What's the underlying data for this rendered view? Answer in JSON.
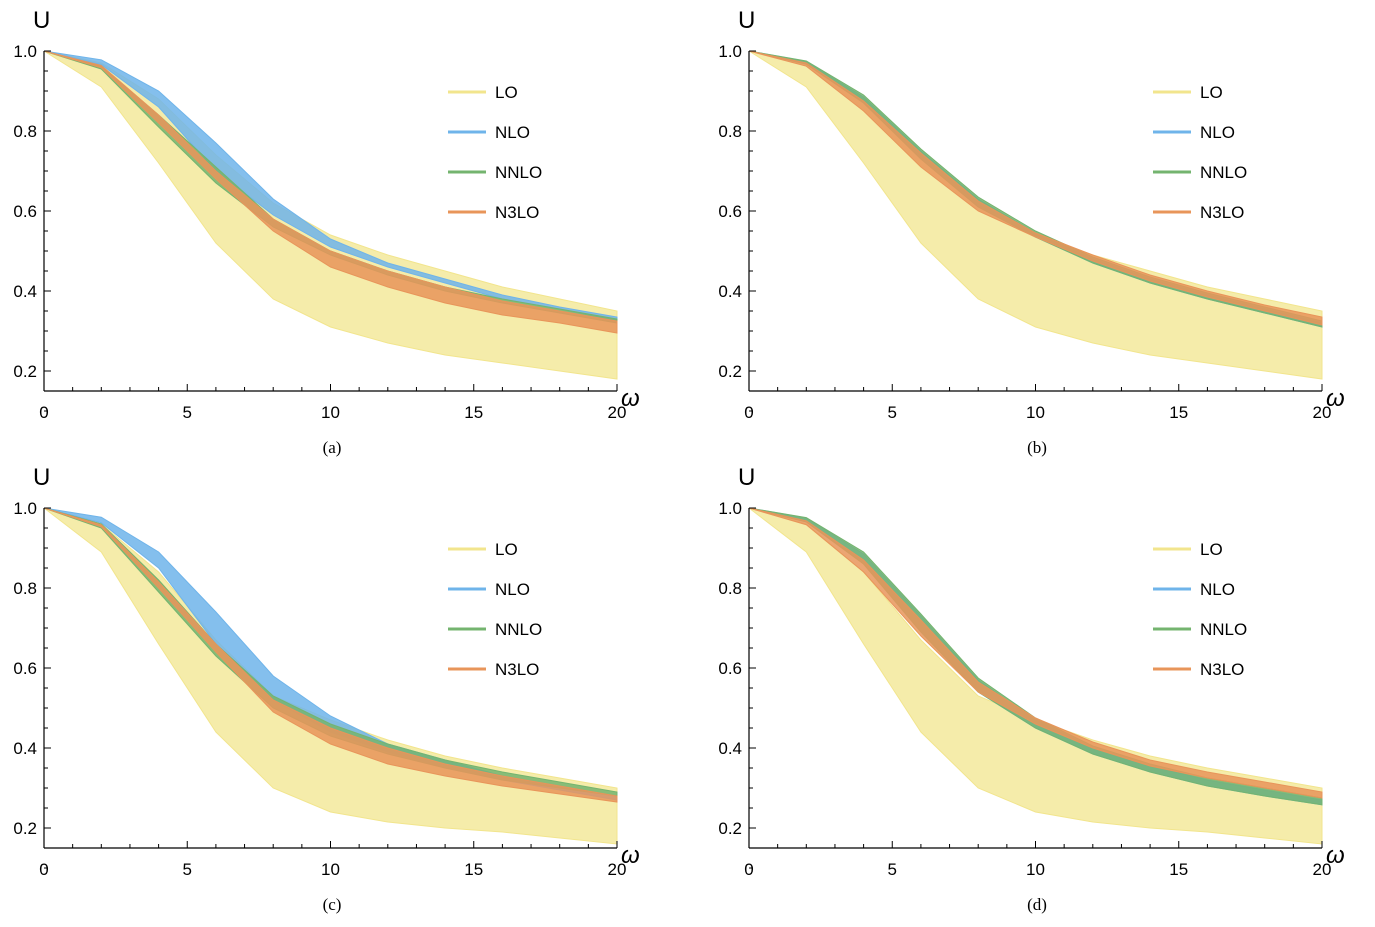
{
  "colors": {
    "LO": "#f2e58d",
    "NLO": "#6fb4ea",
    "NNLO": "#74b46f",
    "N3LO": "#e8955a"
  },
  "chart_data": [
    {
      "type": "area",
      "caption": "(a)",
      "xlabel": "ω",
      "ylabel": "U",
      "xlim": [
        0,
        20
      ],
      "ylim": [
        0.15,
        1.0
      ],
      "xticks": [
        0,
        5,
        10,
        15,
        20
      ],
      "yticks": [
        0.2,
        0.4,
        0.6,
        0.8,
        1.0
      ],
      "x_tick_labels": [
        "0",
        "5",
        "10",
        "15",
        "20"
      ],
      "y_tick_labels": [
        "0.2",
        "0.4",
        "0.6",
        "0.8",
        "1.0"
      ],
      "legend_position": "top-right",
      "grid": false,
      "x": [
        0,
        2,
        4,
        6,
        8,
        10,
        12,
        14,
        16,
        18,
        20
      ],
      "series": [
        {
          "name": "LO",
          "lower": [
            1.0,
            0.91,
            0.72,
            0.52,
            0.38,
            0.31,
            0.27,
            0.24,
            0.22,
            0.2,
            0.18
          ],
          "upper": [
            1.0,
            0.97,
            0.88,
            0.74,
            0.62,
            0.54,
            0.49,
            0.45,
            0.41,
            0.38,
            0.35
          ]
        },
        {
          "name": "NLO",
          "lower": [
            1.0,
            0.966,
            0.86,
            0.7,
            0.59,
            0.51,
            0.46,
            0.42,
            0.38,
            0.355,
            0.325
          ],
          "upper": [
            1.0,
            0.978,
            0.9,
            0.77,
            0.63,
            0.53,
            0.47,
            0.43,
            0.39,
            0.36,
            0.335
          ]
        },
        {
          "name": "NNLO",
          "lower": [
            1.0,
            0.955,
            0.81,
            0.67,
            0.56,
            0.49,
            0.44,
            0.4,
            0.37,
            0.345,
            0.32
          ],
          "upper": [
            1.0,
            0.962,
            0.84,
            0.71,
            0.58,
            0.5,
            0.45,
            0.41,
            0.38,
            0.355,
            0.33
          ]
        },
        {
          "name": "N3LO",
          "lower": [
            1.0,
            0.958,
            0.82,
            0.68,
            0.55,
            0.46,
            0.41,
            0.37,
            0.34,
            0.32,
            0.295
          ],
          "upper": [
            1.0,
            0.964,
            0.84,
            0.7,
            0.58,
            0.5,
            0.45,
            0.41,
            0.375,
            0.35,
            0.325
          ]
        }
      ]
    },
    {
      "type": "area",
      "caption": "(b)",
      "xlabel": "ω",
      "ylabel": "U",
      "xlim": [
        0,
        20
      ],
      "ylim": [
        0.15,
        1.0
      ],
      "xticks": [
        0,
        5,
        10,
        15,
        20
      ],
      "yticks": [
        0.2,
        0.4,
        0.6,
        0.8,
        1.0
      ],
      "x_tick_labels": [
        "0",
        "5",
        "10",
        "15",
        "20"
      ],
      "y_tick_labels": [
        "0.2",
        "0.4",
        "0.6",
        "0.8",
        "1.0"
      ],
      "legend_position": "top-right",
      "grid": false,
      "x": [
        0,
        2,
        4,
        6,
        8,
        10,
        12,
        14,
        16,
        18,
        20
      ],
      "series": [
        {
          "name": "LO",
          "lower": [
            1.0,
            0.91,
            0.72,
            0.52,
            0.38,
            0.31,
            0.27,
            0.24,
            0.22,
            0.2,
            0.18
          ],
          "upper": [
            1.0,
            0.97,
            0.88,
            0.74,
            0.62,
            0.54,
            0.49,
            0.45,
            0.41,
            0.38,
            0.35
          ]
        },
        {
          "name": "NLO",
          "lower": [
            1.0,
            0.968,
            0.87,
            0.73,
            0.61,
            0.535,
            0.47,
            0.42,
            0.38,
            0.345,
            0.31
          ],
          "upper": [
            1.0,
            0.974,
            0.885,
            0.75,
            0.63,
            0.545,
            0.48,
            0.43,
            0.39,
            0.355,
            0.32
          ]
        },
        {
          "name": "NNLO",
          "lower": [
            1.0,
            0.967,
            0.87,
            0.73,
            0.61,
            0.535,
            0.47,
            0.42,
            0.38,
            0.345,
            0.31
          ],
          "upper": [
            1.0,
            0.975,
            0.89,
            0.755,
            0.635,
            0.55,
            0.485,
            0.435,
            0.395,
            0.36,
            0.325
          ]
        },
        {
          "name": "N3LO",
          "lower": [
            1.0,
            0.962,
            0.85,
            0.71,
            0.6,
            0.535,
            0.475,
            0.425,
            0.385,
            0.35,
            0.315
          ],
          "upper": [
            1.0,
            0.97,
            0.875,
            0.745,
            0.625,
            0.545,
            0.49,
            0.44,
            0.4,
            0.365,
            0.335
          ]
        }
      ]
    },
    {
      "type": "area",
      "caption": "(c)",
      "xlabel": "ω",
      "ylabel": "U",
      "xlim": [
        0,
        20
      ],
      "ylim": [
        0.15,
        1.0
      ],
      "xticks": [
        0,
        5,
        10,
        15,
        20
      ],
      "yticks": [
        0.2,
        0.4,
        0.6,
        0.8,
        1.0
      ],
      "x_tick_labels": [
        "0",
        "5",
        "10",
        "15",
        "20"
      ],
      "y_tick_labels": [
        "0.2",
        "0.4",
        "0.6",
        "0.8",
        "1.0"
      ],
      "legend_position": "top-right",
      "grid": false,
      "x": [
        0,
        2,
        4,
        6,
        8,
        10,
        12,
        14,
        16,
        18,
        20
      ],
      "series": [
        {
          "name": "LO",
          "lower": [
            1.0,
            0.89,
            0.66,
            0.44,
            0.3,
            0.24,
            0.215,
            0.2,
            0.19,
            0.175,
            0.16
          ],
          "upper": [
            1.0,
            0.96,
            0.84,
            0.67,
            0.53,
            0.47,
            0.42,
            0.38,
            0.35,
            0.325,
            0.3
          ]
        },
        {
          "name": "NLO",
          "lower": [
            1.0,
            0.963,
            0.85,
            0.66,
            0.52,
            0.44,
            0.39,
            0.35,
            0.32,
            0.295,
            0.27
          ],
          "upper": [
            1.0,
            0.977,
            0.89,
            0.74,
            0.58,
            0.48,
            0.41,
            0.37,
            0.33,
            0.305,
            0.28
          ]
        },
        {
          "name": "NNLO",
          "lower": [
            1.0,
            0.95,
            0.79,
            0.63,
            0.5,
            0.43,
            0.385,
            0.35,
            0.32,
            0.3,
            0.28
          ],
          "upper": [
            1.0,
            0.96,
            0.82,
            0.66,
            0.53,
            0.46,
            0.41,
            0.37,
            0.34,
            0.315,
            0.29
          ]
        },
        {
          "name": "N3LO",
          "lower": [
            1.0,
            0.953,
            0.8,
            0.64,
            0.49,
            0.41,
            0.36,
            0.33,
            0.305,
            0.285,
            0.265
          ],
          "upper": [
            1.0,
            0.958,
            0.815,
            0.66,
            0.52,
            0.45,
            0.4,
            0.36,
            0.33,
            0.305,
            0.28
          ]
        }
      ]
    },
    {
      "type": "area",
      "caption": "(d)",
      "xlabel": "ω",
      "ylabel": "U",
      "xlim": [
        0,
        20
      ],
      "ylim": [
        0.15,
        1.0
      ],
      "xticks": [
        0,
        5,
        10,
        15,
        20
      ],
      "yticks": [
        0.2,
        0.4,
        0.6,
        0.8,
        1.0
      ],
      "x_tick_labels": [
        "0",
        "5",
        "10",
        "15",
        "20"
      ],
      "y_tick_labels": [
        "0.2",
        "0.4",
        "0.6",
        "0.8",
        "1.0"
      ],
      "legend_position": "top-right",
      "grid": false,
      "x": [
        0,
        2,
        4,
        6,
        8,
        10,
        12,
        14,
        16,
        18,
        20
      ],
      "series": [
        {
          "name": "LO",
          "lower": [
            1.0,
            0.89,
            0.66,
            0.44,
            0.3,
            0.24,
            0.215,
            0.2,
            0.19,
            0.175,
            0.16
          ],
          "upper": [
            1.0,
            0.96,
            0.84,
            0.67,
            0.53,
            0.47,
            0.42,
            0.38,
            0.35,
            0.325,
            0.3
          ]
        },
        {
          "name": "NLO",
          "lower": [
            1.0,
            0.966,
            0.86,
            0.69,
            0.54,
            0.45,
            0.385,
            0.34,
            0.305,
            0.28,
            0.258
          ],
          "upper": [
            1.0,
            0.975,
            0.885,
            0.73,
            0.57,
            0.47,
            0.4,
            0.355,
            0.32,
            0.295,
            0.27
          ]
        },
        {
          "name": "NNLO",
          "lower": [
            1.0,
            0.965,
            0.86,
            0.69,
            0.54,
            0.45,
            0.385,
            0.34,
            0.305,
            0.28,
            0.258
          ],
          "upper": [
            1.0,
            0.976,
            0.89,
            0.735,
            0.575,
            0.475,
            0.405,
            0.36,
            0.325,
            0.3,
            0.275
          ]
        },
        {
          "name": "N3LO",
          "lower": [
            1.0,
            0.958,
            0.84,
            0.68,
            0.54,
            0.46,
            0.4,
            0.355,
            0.325,
            0.3,
            0.275
          ],
          "upper": [
            1.0,
            0.968,
            0.87,
            0.72,
            0.565,
            0.475,
            0.415,
            0.37,
            0.34,
            0.315,
            0.29
          ]
        }
      ]
    }
  ]
}
